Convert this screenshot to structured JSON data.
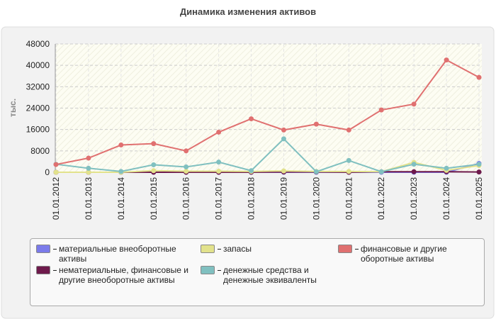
{
  "chart_data": {
    "type": "line",
    "title": "Динамика изменения активов",
    "y_label": "тыс.",
    "categories": [
      "01.01.2012",
      "01.01.2013",
      "01.01.2014",
      "01.01.2015",
      "01.01.2016",
      "01.01.2017",
      "01.01.2018",
      "01.01.2019",
      "01.01.2020",
      "01.01.2021",
      "01.01.2022",
      "01.01.2023",
      "01.01.2024",
      "01.01.2025"
    ],
    "series": [
      {
        "name": "материальные внеоборотные активы",
        "color": "#7b7bea",
        "values": [
          0,
          0,
          0,
          0,
          0,
          0,
          0,
          0,
          0,
          0,
          0,
          0,
          0,
          3300
        ]
      },
      {
        "name": "нематериальные, финансовые и другие внеоборотные активы",
        "color": "#6e1a4c",
        "values": [
          0,
          0,
          0,
          0,
          0,
          0,
          0,
          100,
          100,
          0,
          200,
          200,
          200,
          100
        ]
      },
      {
        "name": "запасы",
        "color": "#e2e28c",
        "values": [
          0,
          0,
          0,
          600,
          400,
          400,
          300,
          500,
          300,
          300,
          200,
          3700,
          700,
          2500
        ]
      },
      {
        "name": "денежные средства и денежные эквиваленты",
        "color": "#80c0c0",
        "values": [
          3000,
          1500,
          300,
          2800,
          2000,
          3800,
          600,
          12500,
          200,
          4400,
          200,
          3000,
          1500,
          3000
        ]
      },
      {
        "name": "финансовые и другие оборотные активы",
        "color": "#e07070",
        "values": [
          2900,
          5300,
          10200,
          10700,
          8000,
          15000,
          20000,
          15800,
          18000,
          15800,
          23300,
          25500,
          42000,
          35500
        ]
      }
    ],
    "ylim": [
      0,
      48000
    ],
    "yticks": [
      0,
      8000,
      16000,
      24000,
      32000,
      40000,
      48000
    ],
    "grid": true
  }
}
